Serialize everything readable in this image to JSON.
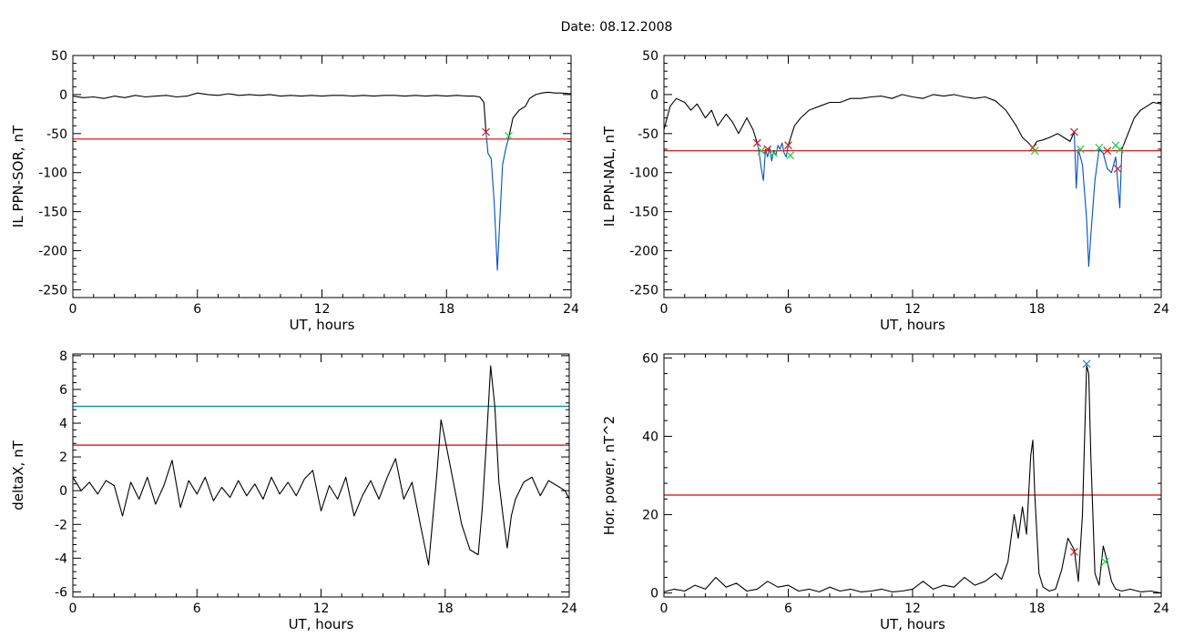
{
  "title": "Date:  08.12.2008",
  "chart_data": [
    {
      "type": "line",
      "ylabel": "IL PPN-SOR, nT",
      "xlabel": "UT, hours",
      "xlim": [
        0,
        24
      ],
      "ylim": [
        -260,
        50
      ],
      "xticks": [
        0,
        6,
        12,
        18,
        24
      ],
      "yticks": [
        50,
        0,
        -50,
        -100,
        -150,
        -200,
        -250
      ],
      "thresholds": [
        {
          "y": -57,
          "color": "#dd0000"
        }
      ],
      "series": [
        {
          "color": "#000000",
          "x": [
            0,
            0.5,
            1,
            1.5,
            2,
            2.5,
            3,
            3.5,
            4,
            4.5,
            5,
            5.5,
            6,
            6.5,
            7,
            7.5,
            8,
            8.5,
            9,
            9.5,
            10,
            10.5,
            11,
            11.5,
            12,
            12.5,
            13,
            13.5,
            14,
            14.5,
            15,
            15.5,
            16,
            16.5,
            17,
            17.5,
            18,
            18.5,
            19,
            19.3,
            19.6,
            19.8,
            19.9
          ],
          "y": [
            -2,
            -4,
            -3,
            -5,
            -2,
            -4,
            -1,
            -3,
            -2,
            -1,
            -3,
            -2,
            2,
            0,
            -1,
            1,
            -1,
            0,
            -1,
            0,
            -2,
            -1,
            -2,
            -1,
            -2,
            -1,
            -1,
            -2,
            -1,
            -2,
            -1,
            -1,
            -2,
            -1,
            -2,
            -1,
            -2,
            -1,
            -2,
            -2,
            -3,
            -10,
            -48
          ]
        },
        {
          "color": "#0050c8",
          "x": [
            19.9,
            20.0,
            20.15,
            20.3,
            20.45,
            20.55,
            20.7,
            20.85,
            21.0
          ],
          "y": [
            -48,
            -75,
            -82,
            -140,
            -225,
            -170,
            -90,
            -70,
            -55
          ]
        },
        {
          "color": "#000000",
          "x": [
            21.0,
            21.2,
            21.5,
            21.8,
            22.0,
            22.3,
            22.6,
            22.9,
            23.2,
            23.5,
            24
          ],
          "y": [
            -55,
            -30,
            -20,
            -15,
            -5,
            0,
            2,
            3,
            2,
            2,
            1
          ]
        }
      ],
      "markers": [
        {
          "x": 19.9,
          "y": -48,
          "color": "#cc2222"
        },
        {
          "x": 21.0,
          "y": -53,
          "color": "#22cc44"
        }
      ]
    },
    {
      "type": "line",
      "ylabel": "IL PPN-NAL, nT",
      "xlabel": "UT, hours",
      "xlim": [
        0,
        24
      ],
      "ylim": [
        -260,
        50
      ],
      "xticks": [
        0,
        6,
        12,
        18,
        24
      ],
      "yticks": [
        50,
        0,
        -50,
        -100,
        -150,
        -200,
        -250
      ],
      "thresholds": [
        {
          "y": -72,
          "color": "#dd0000"
        }
      ],
      "series": [
        {
          "color": "#000000",
          "x": [
            0,
            0.3,
            0.6,
            1,
            1.3,
            1.6,
            2,
            2.3,
            2.6,
            3,
            3.3,
            3.6,
            4,
            4.3,
            4.5
          ],
          "y": [
            -45,
            -15,
            -5,
            -10,
            -20,
            -12,
            -30,
            -20,
            -40,
            -25,
            -35,
            -50,
            -30,
            -45,
            -62
          ]
        },
        {
          "color": "#0050c8",
          "x": [
            4.5,
            4.6,
            4.7,
            4.8,
            4.9,
            5.0,
            5.1,
            5.2,
            5.3,
            5.4,
            5.5,
            5.6,
            5.7,
            5.8,
            5.9,
            6.0
          ],
          "y": [
            -62,
            -75,
            -95,
            -110,
            -70,
            -80,
            -68,
            -85,
            -72,
            -78,
            -65,
            -70,
            -62,
            -75,
            -80,
            -65
          ]
        },
        {
          "color": "#000000",
          "x": [
            6.0,
            6.3,
            6.6,
            7,
            7.5,
            8,
            8.5,
            9,
            9.5,
            10,
            10.5,
            11,
            11.5,
            12,
            12.5,
            13,
            13.5,
            14,
            14.5,
            15,
            15.5,
            16,
            16.5,
            17,
            17.3,
            17.6,
            17.8,
            18.0,
            18.3,
            18.6,
            19,
            19.3,
            19.6,
            19.8
          ],
          "y": [
            -65,
            -40,
            -30,
            -20,
            -15,
            -10,
            -10,
            -5,
            -5,
            -3,
            -2,
            -5,
            0,
            -3,
            -5,
            0,
            -2,
            0,
            -3,
            -5,
            -3,
            -8,
            -20,
            -40,
            -55,
            -62,
            -68,
            -60,
            -58,
            -55,
            -50,
            -55,
            -60,
            -48
          ]
        },
        {
          "color": "#0050c8",
          "x": [
            19.8,
            19.9,
            20.0,
            20.2,
            20.4,
            20.5,
            20.6,
            20.8,
            21.0,
            21.2,
            21.4,
            21.6,
            21.8,
            22.0,
            22.1
          ],
          "y": [
            -48,
            -120,
            -70,
            -90,
            -160,
            -220,
            -180,
            -110,
            -70,
            -75,
            -95,
            -100,
            -80,
            -145,
            -70
          ]
        },
        {
          "color": "#000000",
          "x": [
            22.1,
            22.4,
            22.7,
            23,
            23.3,
            23.6,
            24
          ],
          "y": [
            -70,
            -50,
            -30,
            -20,
            -15,
            -10,
            -12
          ]
        }
      ],
      "markers": [
        {
          "x": 4.5,
          "y": -62,
          "color": "#cc2222"
        },
        {
          "x": 4.7,
          "y": -72,
          "color": "#22cc44"
        },
        {
          "x": 5.0,
          "y": -70,
          "color": "#cc2222"
        },
        {
          "x": 5.3,
          "y": -75,
          "color": "#22cc44"
        },
        {
          "x": 6.0,
          "y": -65,
          "color": "#cc2222"
        },
        {
          "x": 6.1,
          "y": -78,
          "color": "#22cc44"
        },
        {
          "x": 17.8,
          "y": -68,
          "color": "#cc2222"
        },
        {
          "x": 17.9,
          "y": -72,
          "color": "#22cc44"
        },
        {
          "x": 19.8,
          "y": -48,
          "color": "#cc2222"
        },
        {
          "x": 20.1,
          "y": -70,
          "color": "#22cc44"
        },
        {
          "x": 21.0,
          "y": -68,
          "color": "#22cc44"
        },
        {
          "x": 21.4,
          "y": -72,
          "color": "#cc2222"
        },
        {
          "x": 21.8,
          "y": -65,
          "color": "#22cc44"
        },
        {
          "x": 22.0,
          "y": -70,
          "color": "#22cc44"
        },
        {
          "x": 21.9,
          "y": -95,
          "color": "#cc2222"
        }
      ]
    },
    {
      "type": "line",
      "ylabel": "deltaX, nT",
      "xlabel": "UT, hours",
      "xlim": [
        0,
        24
      ],
      "ylim": [
        -6.3,
        8.1
      ],
      "xticks": [
        0,
        6,
        12,
        18,
        24
      ],
      "yticks": [
        8,
        6,
        4,
        2,
        0,
        -2,
        -4,
        -6
      ],
      "thresholds": [
        {
          "y": 5.0,
          "color": "#008a8a"
        },
        {
          "y": 2.7,
          "color": "#dd0000"
        }
      ],
      "series": [
        {
          "color": "#000000",
          "x": [
            0,
            0.4,
            0.8,
            1.2,
            1.6,
            2,
            2.4,
            2.8,
            3.2,
            3.6,
            4,
            4.4,
            4.8,
            5.2,
            5.6,
            6,
            6.4,
            6.8,
            7.2,
            7.6,
            8,
            8.4,
            8.8,
            9.2,
            9.6,
            10,
            10.4,
            10.8,
            11.2,
            11.6,
            12,
            12.4,
            12.8,
            13.2,
            13.6,
            14,
            14.4,
            14.8,
            15.2,
            15.6,
            16,
            16.4,
            16.8,
            17.2,
            17.6,
            17.8,
            18.0,
            18.4,
            18.8,
            19.2,
            19.6,
            19.8,
            20.0,
            20.2,
            20.4,
            20.6,
            20.8,
            21.0,
            21.2,
            21.4,
            21.8,
            22.2,
            22.6,
            23,
            23.4,
            23.8,
            24
          ],
          "y": [
            0.8,
            0.0,
            0.5,
            -0.2,
            0.6,
            0.3,
            -1.5,
            0.5,
            -0.5,
            0.8,
            -0.8,
            0.3,
            1.8,
            -1.0,
            0.6,
            -0.2,
            0.8,
            -0.6,
            0.2,
            -0.4,
            0.6,
            -0.3,
            0.4,
            -0.5,
            0.8,
            -0.2,
            0.5,
            -0.3,
            0.7,
            1.2,
            -1.2,
            0.3,
            -0.5,
            0.8,
            -1.5,
            -0.3,
            0.6,
            -0.5,
            0.8,
            1.9,
            -0.5,
            0.5,
            -2.0,
            -4.4,
            1.0,
            4.2,
            3.0,
            0.5,
            -2.0,
            -3.5,
            -3.8,
            -1.0,
            3.0,
            7.4,
            5.0,
            0.5,
            -1.5,
            -3.4,
            -1.5,
            -0.5,
            0.5,
            0.8,
            -0.3,
            0.6,
            0.3,
            0.0,
            -0.5
          ]
        }
      ],
      "markers": []
    },
    {
      "type": "line",
      "ylabel": "Hor. power, nT^2",
      "xlabel": "UT, hours",
      "xlim": [
        0,
        24
      ],
      "ylim": [
        -1,
        61
      ],
      "xticks": [
        0,
        6,
        12,
        18,
        24
      ],
      "yticks": [
        60,
        40,
        20,
        0
      ],
      "thresholds": [
        {
          "y": 25,
          "color": "#dd0000"
        }
      ],
      "series": [
        {
          "color": "#000000",
          "x": [
            0,
            0.5,
            1,
            1.5,
            2,
            2.5,
            3,
            3.5,
            4,
            4.5,
            5,
            5.5,
            6,
            6.5,
            7,
            7.5,
            8,
            8.5,
            9,
            9.5,
            10,
            10.5,
            11,
            11.5,
            12,
            12.5,
            13,
            13.5,
            14,
            14.5,
            15,
            15.5,
            16,
            16.3,
            16.6,
            16.9,
            17.1,
            17.3,
            17.5,
            17.7,
            17.8,
            17.9,
            18.1,
            18.3,
            18.6,
            18.9,
            19.2,
            19.5,
            19.8,
            20.0,
            20.2,
            20.4,
            20.5,
            20.6,
            20.8,
            21.0,
            21.2,
            21.4,
            21.6,
            21.8,
            22.1,
            22.5,
            23,
            23.5,
            24
          ],
          "y": [
            0.3,
            1.0,
            0.5,
            2.0,
            1.0,
            4.0,
            1.5,
            2.5,
            0.5,
            1.0,
            3.0,
            1.5,
            2.0,
            0.5,
            1.0,
            0.3,
            1.5,
            0.5,
            1.0,
            0.3,
            0.5,
            1.0,
            0.3,
            0.5,
            1.0,
            3.0,
            1.0,
            2.0,
            1.5,
            4.0,
            2.0,
            3.0,
            5.0,
            3.5,
            8.0,
            20.0,
            14.0,
            22.0,
            15.0,
            35.0,
            39.0,
            25.0,
            5.0,
            1.5,
            0.5,
            1.0,
            6.0,
            14.0,
            11.0,
            3.0,
            20.0,
            58.0,
            56.0,
            35.0,
            5.0,
            2.0,
            12.0,
            8.0,
            3.0,
            1.0,
            0.5,
            1.0,
            0.3,
            0.5,
            0.0
          ]
        }
      ],
      "markers": [
        {
          "x": 20.4,
          "y": 58.5,
          "color": "#2a7fc0"
        },
        {
          "x": 19.8,
          "y": 10.5,
          "color": "#cc2222"
        },
        {
          "x": 21.3,
          "y": 8.0,
          "color": "#22cc44"
        }
      ]
    }
  ]
}
